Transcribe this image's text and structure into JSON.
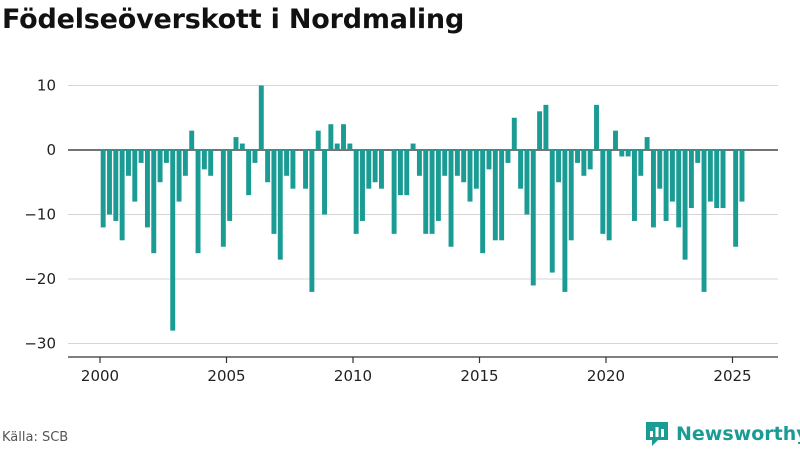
{
  "title": "Födelseöverskott i Nordmaling",
  "source": "Källa: SCB",
  "brand": {
    "name": "Newsworthy",
    "icon": "newsworthy-logo-icon",
    "color": "#1a9c94"
  },
  "chart_data": {
    "type": "bar",
    "title": "Födelseöverskott i Nordmaling",
    "xlabel": "",
    "ylabel": "",
    "ylim": [
      -31,
      12
    ],
    "xlim": [
      1999.0,
      2026.8
    ],
    "y_ticks": [
      10,
      0,
      -10,
      -20,
      -30
    ],
    "y_tick_labels": [
      "10",
      "0",
      "−10",
      "−20",
      "−30"
    ],
    "x_ticks": [
      2000,
      2005,
      2010,
      2015,
      2020,
      2025
    ],
    "x_tick_labels": [
      "2000",
      "2005",
      "2010",
      "2015",
      "2020",
      "2025"
    ],
    "grid": true,
    "bar_color": "#1a9c94",
    "frequency": "quarterly",
    "start": "2000 Q1",
    "values": [
      -12,
      -10,
      -11,
      -14,
      -4,
      -8,
      -2,
      -12,
      -16,
      -5,
      -2,
      -28,
      -8,
      -4,
      3,
      -16,
      -3,
      -4,
      0,
      -15,
      -11,
      2,
      1,
      -7,
      -2,
      10,
      -5,
      -13,
      -17,
      -4,
      -6,
      0,
      -6,
      -22,
      3,
      -10,
      4,
      1,
      4,
      1,
      -13,
      -11,
      -6,
      -5,
      -6,
      0,
      -13,
      -7,
      -7,
      1,
      -4,
      -13,
      -13,
      -11,
      -4,
      -15,
      -4,
      -5,
      -8,
      -6,
      -16,
      -3,
      -14,
      -14,
      -2,
      5,
      -6,
      -10,
      -21,
      6,
      7,
      -19,
      -5,
      -22,
      -14,
      -2,
      -4,
      -3,
      7,
      -13,
      -14,
      3,
      -1,
      -1,
      -11,
      -4,
      2,
      -12,
      -6,
      -11,
      -8,
      -12,
      -17,
      -9,
      -2,
      -22,
      -8,
      -9,
      -9,
      0,
      -15,
      -8
    ]
  }
}
